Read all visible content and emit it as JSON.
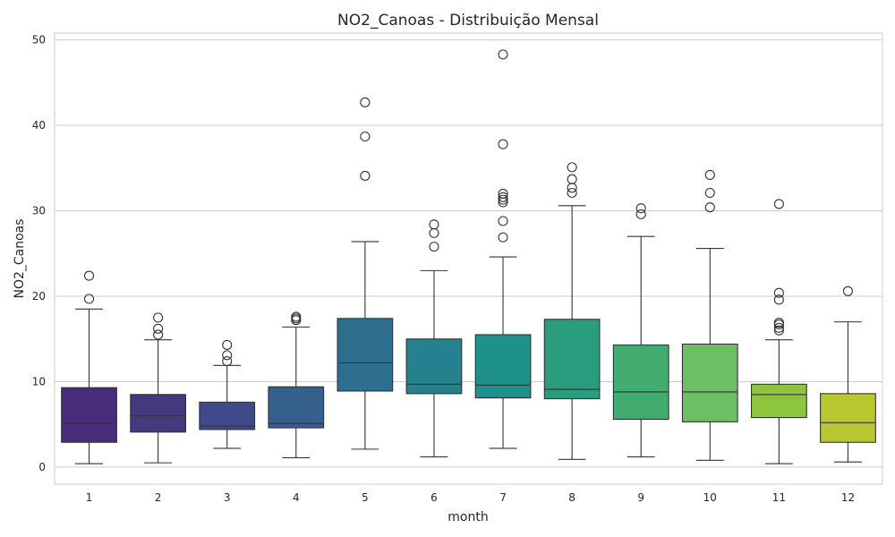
{
  "chart_data": {
    "type": "box",
    "title": "NO2_Canoas - Distribuição Mensal",
    "xlabel": "month",
    "ylabel": "NO2_Canoas",
    "ylim": [
      -2,
      50.8
    ],
    "yticks": [
      0,
      10,
      20,
      30,
      40,
      50
    ],
    "ytick_labels": [
      "0",
      "10",
      "20",
      "30",
      "40",
      "50"
    ],
    "grid": true,
    "categories": [
      "1",
      "2",
      "3",
      "4",
      "5",
      "6",
      "7",
      "8",
      "9",
      "10",
      "11",
      "12"
    ],
    "boxes": [
      {
        "month": "1",
        "whisker_low": 0.4,
        "q1": 2.9,
        "median": 5.1,
        "q3": 9.3,
        "whisker_high": 18.5,
        "outliers": [
          19.7,
          22.4
        ],
        "color": "#472c7a"
      },
      {
        "month": "2",
        "whisker_low": 0.5,
        "q1": 4.1,
        "median": 6.0,
        "q3": 8.5,
        "whisker_high": 14.9,
        "outliers": [
          15.5,
          16.2,
          17.5
        ],
        "color": "#44397f"
      },
      {
        "month": "3",
        "whisker_low": 2.2,
        "q1": 4.4,
        "median": 4.8,
        "q3": 7.6,
        "whisker_high": 11.9,
        "outliers": [
          12.4,
          13.1,
          14.3
        ],
        "color": "#3e4a89"
      },
      {
        "month": "4",
        "whisker_low": 1.1,
        "q1": 4.6,
        "median": 5.1,
        "q3": 9.4,
        "whisker_high": 16.4,
        "outliers": [
          17.2,
          17.4,
          17.6
        ],
        "color": "#355f8d"
      },
      {
        "month": "5",
        "whisker_low": 2.1,
        "q1": 8.9,
        "median": 12.2,
        "q3": 17.4,
        "whisker_high": 26.4,
        "outliers": [
          34.1,
          38.7,
          42.7
        ],
        "color": "#2e6e8e"
      },
      {
        "month": "6",
        "whisker_low": 1.2,
        "q1": 8.6,
        "median": 9.7,
        "q3": 15.0,
        "whisker_high": 23.0,
        "outliers": [
          25.8,
          27.4,
          28.4
        ],
        "color": "#26808e"
      },
      {
        "month": "7",
        "whisker_low": 2.2,
        "q1": 8.1,
        "median": 9.6,
        "q3": 15.5,
        "whisker_high": 24.6,
        "outliers": [
          26.9,
          28.8,
          31.0,
          31.3,
          31.6,
          32.0,
          37.8,
          48.3
        ],
        "color": "#1f918c"
      },
      {
        "month": "8",
        "whisker_low": 0.9,
        "q1": 8.0,
        "median": 9.1,
        "q3": 17.3,
        "whisker_high": 30.6,
        "outliers": [
          32.1,
          32.7,
          33.7,
          35.1
        ],
        "color": "#2a9d7f"
      },
      {
        "month": "9",
        "whisker_low": 1.2,
        "q1": 5.6,
        "median": 8.8,
        "q3": 14.3,
        "whisker_high": 27.0,
        "outliers": [
          29.6,
          30.3
        ],
        "color": "#42ab6f"
      },
      {
        "month": "10",
        "whisker_low": 0.8,
        "q1": 5.3,
        "median": 8.8,
        "q3": 14.4,
        "whisker_high": 25.6,
        "outliers": [
          30.4,
          32.1,
          34.2
        ],
        "color": "#6cbf63"
      },
      {
        "month": "11",
        "whisker_low": 0.4,
        "q1": 5.8,
        "median": 8.5,
        "q3": 9.7,
        "whisker_high": 14.9,
        "outliers": [
          16.0,
          16.3,
          16.7,
          16.9,
          19.6,
          20.4,
          30.8
        ],
        "color": "#8cc63f"
      },
      {
        "month": "12",
        "whisker_low": 0.6,
        "q1": 2.9,
        "median": 5.2,
        "q3": 8.6,
        "whisker_high": 17.0,
        "outliers": [
          20.6
        ],
        "color": "#b8c72f"
      }
    ]
  }
}
